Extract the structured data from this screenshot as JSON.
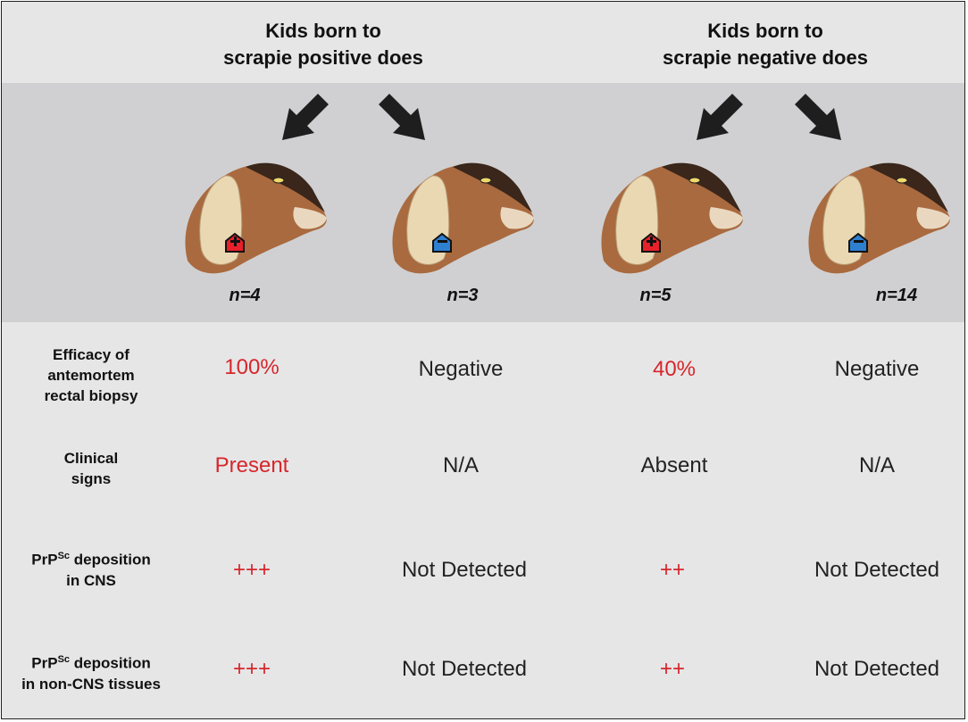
{
  "groups": [
    {
      "title_line1": "Kids born to",
      "title_line2": "scrapie positive does"
    },
    {
      "title_line1": "Kids born to",
      "title_line2": "scrapie negative does"
    }
  ],
  "columns": [
    {
      "n": "n=4",
      "tag": "positive"
    },
    {
      "n": "n=3",
      "tag": "negative"
    },
    {
      "n": "n=5",
      "tag": "positive"
    },
    {
      "n": "n=14",
      "tag": "negative"
    }
  ],
  "rows": [
    {
      "label_lines": [
        "Efficacy of",
        "antemortem",
        "rectal biopsy"
      ],
      "cells": [
        "100%",
        "Negative",
        "40%",
        "Negative"
      ]
    },
    {
      "label_lines": [
        "Clinical",
        "signs"
      ],
      "cells": [
        "Present",
        "N/A",
        "Absent",
        "N/A"
      ]
    },
    {
      "label_prefix": "PrP",
      "label_sup": "Sc",
      "label_suffix": " deposition",
      "label_line2": "in CNS",
      "cells": [
        "+++",
        "Not Detected",
        "++",
        "Not Detected"
      ]
    },
    {
      "label_prefix": "PrP",
      "label_sup": "Sc",
      "label_suffix": " deposition",
      "label_line2": "in non-CNS tissues",
      "cells": [
        "+++",
        "Not Detected",
        "++",
        "Not Detected"
      ]
    }
  ],
  "colors": {
    "positive_text": "#d6262b",
    "normal_text": "#222222",
    "tag_positive": "#e8202a",
    "tag_negative": "#2f7fd0",
    "arrow": "#1e1e1e"
  }
}
